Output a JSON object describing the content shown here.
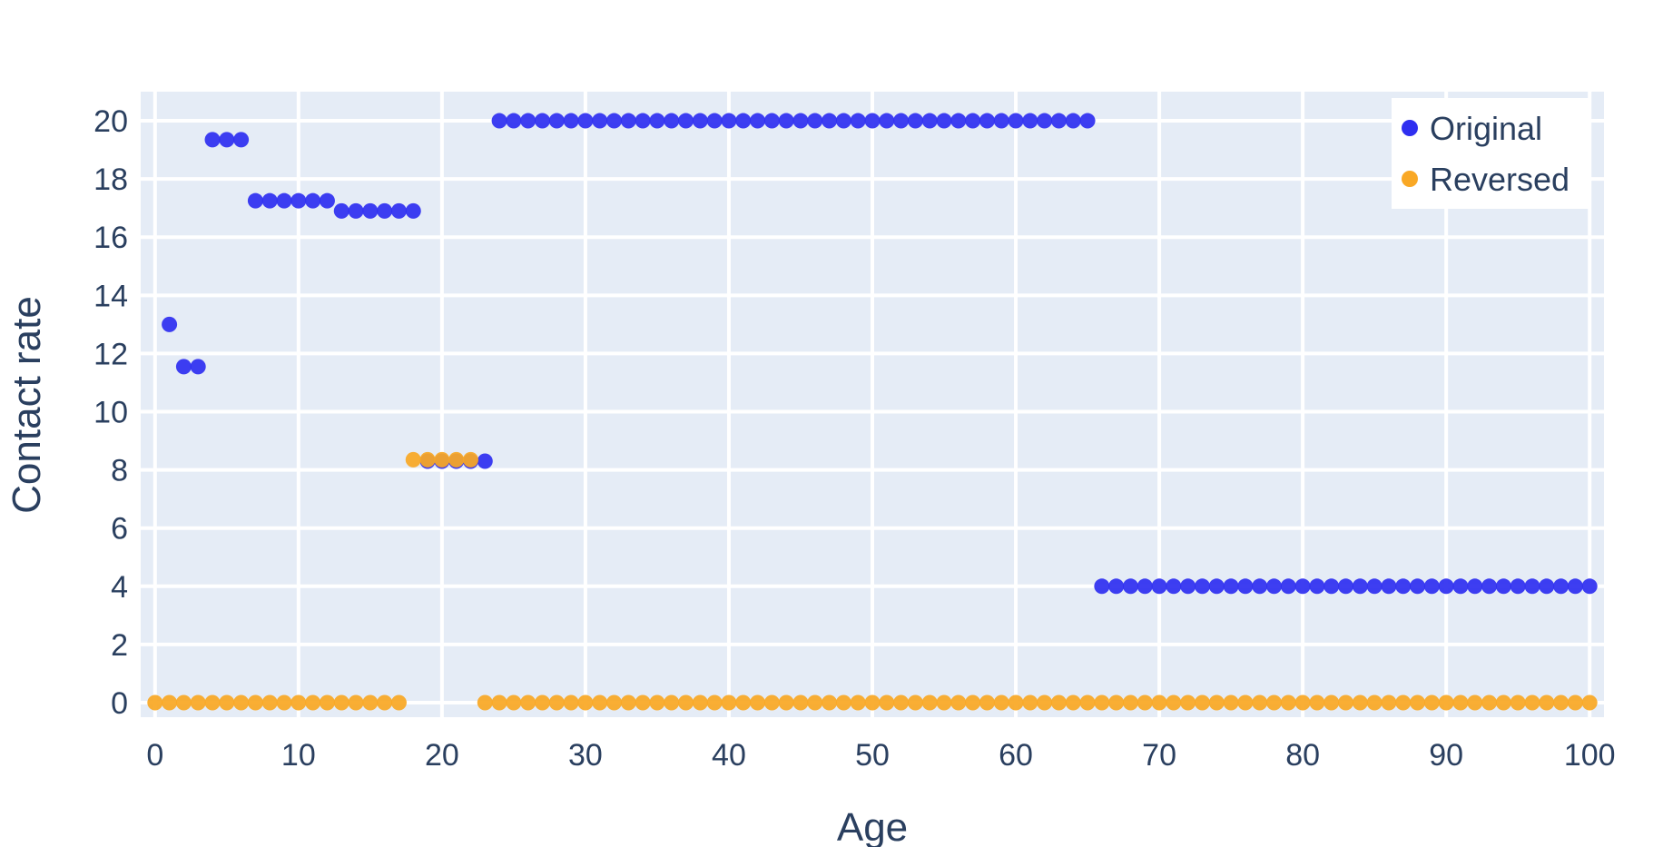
{
  "chart_data": {
    "type": "scatter",
    "xlabel": "Age",
    "ylabel": "Contact rate",
    "xlim": [
      -1,
      101
    ],
    "ylim": [
      -0.5,
      21
    ],
    "xticks": [
      0,
      10,
      20,
      30,
      40,
      50,
      60,
      70,
      80,
      90,
      100
    ],
    "yticks": [
      0,
      2,
      4,
      6,
      8,
      10,
      12,
      14,
      16,
      18,
      20
    ],
    "grid": true,
    "legend_position": "top-right",
    "colors": {
      "plot_bg": "#e5ecf6",
      "grid": "#ffffff",
      "text": "#2a3f5f"
    },
    "series": [
      {
        "name": "Original",
        "color": "#2f2ff0",
        "segments": [
          {
            "x_start": 1,
            "x_end": 1,
            "y": 13.0
          },
          {
            "x_start": 2,
            "x_end": 3,
            "y": 11.55
          },
          {
            "x_start": 4,
            "x_end": 6,
            "y": 19.35
          },
          {
            "x_start": 7,
            "x_end": 12,
            "y": 17.25
          },
          {
            "x_start": 13,
            "x_end": 18,
            "y": 16.9
          },
          {
            "x_start": 19,
            "x_end": 23,
            "y": 8.3
          },
          {
            "x_start": 24,
            "x_end": 65,
            "y": 20.0
          },
          {
            "x_start": 66,
            "x_end": 100,
            "y": 4.0
          }
        ]
      },
      {
        "name": "Reversed",
        "color": "#f9a825",
        "segments": [
          {
            "x_start": 0,
            "x_end": 17,
            "y": 0.0
          },
          {
            "x_start": 18,
            "x_end": 22,
            "y": 8.35
          },
          {
            "x_start": 23,
            "x_end": 100,
            "y": 0.0
          }
        ]
      }
    ]
  }
}
